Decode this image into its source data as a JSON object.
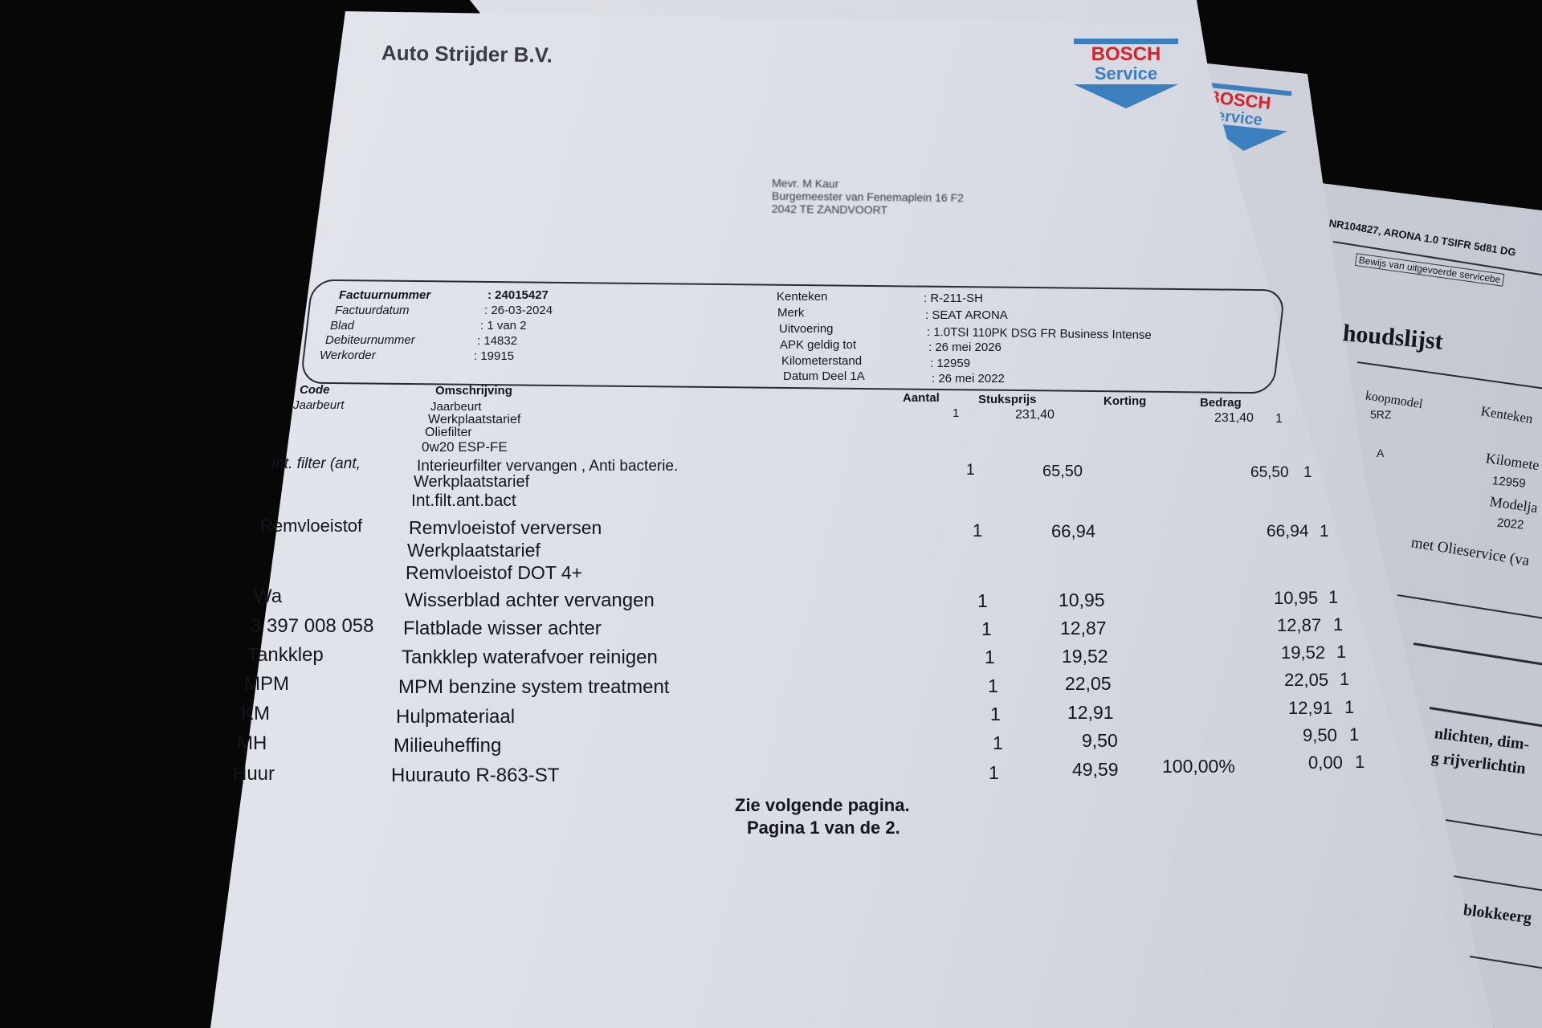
{
  "company": "Auto Strijder B.V.",
  "logo": {
    "line1": "BOSCH",
    "line2": "Service",
    "colors": {
      "red": "#d6232b",
      "blue": "#3c7fbf"
    }
  },
  "recipient": {
    "name": "Mevr. M Kaur",
    "street": "Burgemeester van Fenemaplein 16 F2",
    "city": "2042 TE ZANDVOORT"
  },
  "invoice_info": {
    "left": [
      {
        "label": "Factuurnummer",
        "value": ": 24015427"
      },
      {
        "label": "Factuurdatum",
        "value": ": 26-03-2024"
      },
      {
        "label": "Blad",
        "value": ": 1 van 2"
      },
      {
        "label": "Debiteurnummer",
        "value": ": 14832"
      },
      {
        "label": "Werkorder",
        "value": ": 19915"
      }
    ],
    "right": [
      {
        "label": "Kenteken",
        "value": ": R-211-SH"
      },
      {
        "label": "Merk",
        "value": ": SEAT ARONA"
      },
      {
        "label": "Uitvoering",
        "value": ": 1.0TSI 110PK DSG FR Business Intense"
      },
      {
        "label": "APK geldig tot",
        "value": ": 26 mei 2026"
      },
      {
        "label": "Kilometerstand",
        "value": ": 12959"
      },
      {
        "label": "Datum Deel 1A",
        "value": ": 26 mei 2022"
      }
    ]
  },
  "table": {
    "headers": {
      "code": "Code",
      "description": "Omschrijving",
      "qty": "Aantal",
      "unit_price": "Stuksprijs",
      "discount": "Korting",
      "amount": "Bedrag"
    },
    "rows": [
      {
        "code": "Jaarbeurt",
        "lines": [
          "Jaarbeurt",
          "Werkplaatstarief",
          "Oliefilter",
          "0w20 ESP-FE"
        ],
        "qty": "1",
        "unit_price": "231,40",
        "discount": "",
        "amount": "231,40",
        "vat": "1"
      },
      {
        "code": "Int. filter (ant,",
        "lines": [
          "Interieurfilter vervangen , Anti bacterie.",
          "Werkplaatstarief",
          "Int.filt.ant.bact"
        ],
        "qty": "1",
        "unit_price": "65,50",
        "discount": "",
        "amount": "65,50",
        "vat": "1"
      },
      {
        "code": "Remvloeistof",
        "lines": [
          "Remvloeistof verversen",
          "Werkplaatstarief",
          "Remvloeistof DOT 4+"
        ],
        "qty": "1",
        "unit_price": "66,94",
        "discount": "",
        "amount": "66,94",
        "vat": "1"
      },
      {
        "code": "Wa",
        "lines": [
          "Wisserblad achter vervangen"
        ],
        "qty": "1",
        "unit_price": "10,95",
        "discount": "",
        "amount": "10,95",
        "vat": "1"
      },
      {
        "code": "3 397 008 058",
        "lines": [
          "Flatblade wisser achter"
        ],
        "qty": "1",
        "unit_price": "12,87",
        "discount": "",
        "amount": "12,87",
        "vat": "1"
      },
      {
        "code": "Tankklep",
        "lines": [
          "Tankklep waterafvoer reinigen"
        ],
        "qty": "1",
        "unit_price": "19,52",
        "discount": "",
        "amount": "19,52",
        "vat": "1"
      },
      {
        "code": "MPM",
        "lines": [
          "MPM benzine system treatment"
        ],
        "qty": "1",
        "unit_price": "22,05",
        "discount": "",
        "amount": "22,05",
        "vat": "1"
      },
      {
        "code": "KM",
        "lines": [
          "Hulpmateriaal"
        ],
        "qty": "1",
        "unit_price": "12,91",
        "discount": "",
        "amount": "12,91",
        "vat": "1"
      },
      {
        "code": "MH",
        "lines": [
          "Milieuheffing"
        ],
        "qty": "1",
        "unit_price": "9,50",
        "discount": "",
        "amount": "9,50",
        "vat": "1"
      },
      {
        "code": "Huur",
        "lines": [
          "Huurauto R-863-ST"
        ],
        "qty": "1",
        "unit_price": "49,59",
        "discount": "100,00%",
        "amount": "0,00",
        "vat": "1"
      }
    ]
  },
  "footer": {
    "next": "Zie volgende pagina.",
    "page": "Pagina 1 van de 2."
  },
  "back_page": {
    "header": "NR104827, ARONA 1.0 TSIFR 5d81 DG",
    "button": "Bewijs van uitgevoerde servicebe",
    "title": "houdslijst",
    "fields": [
      "koopmodel",
      "5RZ",
      "Kenteken",
      "A",
      "Kilomete",
      "12959",
      "Modelja",
      "2022"
    ],
    "lines": [
      "met Olieservice (va",
      "nlichten, dim-",
      "g rijverlichtin",
      "blokkeerg"
    ]
  }
}
